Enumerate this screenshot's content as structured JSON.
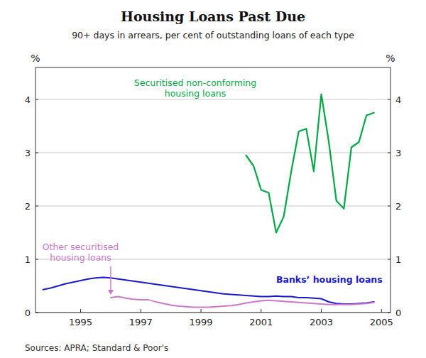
{
  "chart_data": {
    "type": "line",
    "title": "Housing Loans Past Due",
    "subtitle": "90+ days in arrears, per cent of outstanding loans of each type",
    "ylabel": "%",
    "y2label": "%",
    "source": "Sources: APRA; Standard & Poor's",
    "xlim": [
      1993.5,
      2005.3
    ],
    "ylim": [
      0,
      4.6
    ],
    "y2lim": [
      0,
      4.6
    ],
    "xticks": [
      1995,
      1997,
      1999,
      2001,
      2003,
      2005
    ],
    "yticks": [
      0,
      1,
      2,
      3,
      4
    ],
    "y2ticks": [
      0,
      1,
      2,
      3,
      4
    ],
    "grid": true,
    "series": [
      {
        "name": "Banks’ housing loans",
        "color": "#1a1acc",
        "x": [
          1993.75,
          1994.0,
          1994.25,
          1994.5,
          1994.75,
          1995.0,
          1995.25,
          1995.5,
          1995.75,
          1996.0,
          1996.25,
          1996.5,
          1996.75,
          1997.0,
          1997.25,
          1997.5,
          1997.75,
          1998.0,
          1998.25,
          1998.5,
          1998.75,
          1999.0,
          1999.25,
          1999.5,
          1999.75,
          2000.0,
          2000.25,
          2000.5,
          2000.75,
          2001.0,
          2001.25,
          2001.5,
          2001.75,
          2002.0,
          2002.25,
          2002.5,
          2002.75,
          2003.0,
          2003.25,
          2003.5,
          2003.75,
          2004.0,
          2004.25,
          2004.5,
          2004.75
        ],
        "values": [
          0.43,
          0.46,
          0.5,
          0.54,
          0.57,
          0.6,
          0.63,
          0.65,
          0.66,
          0.65,
          0.63,
          0.61,
          0.59,
          0.57,
          0.55,
          0.53,
          0.51,
          0.49,
          0.47,
          0.45,
          0.43,
          0.41,
          0.39,
          0.37,
          0.35,
          0.34,
          0.33,
          0.32,
          0.31,
          0.3,
          0.3,
          0.31,
          0.3,
          0.3,
          0.28,
          0.28,
          0.27,
          0.26,
          0.2,
          0.17,
          0.16,
          0.16,
          0.17,
          0.18,
          0.2
        ]
      },
      {
        "name": "Other securitised\nhousing loans",
        "color": "#cc77cc",
        "x": [
          1996.0,
          1996.25,
          1996.5,
          1996.75,
          1997.0,
          1997.25,
          1997.5,
          1997.75,
          1998.0,
          1998.25,
          1998.5,
          1998.75,
          1999.0,
          1999.25,
          1999.5,
          1999.75,
          2000.0,
          2000.25,
          2000.5,
          2000.75,
          2001.0,
          2001.25,
          2001.5,
          2001.75,
          2002.0,
          2002.25,
          2002.5,
          2002.75,
          2003.0,
          2003.25,
          2003.5,
          2003.75,
          2004.0,
          2004.25,
          2004.5,
          2004.75
        ],
        "values": [
          0.28,
          0.3,
          0.27,
          0.25,
          0.24,
          0.24,
          0.2,
          0.17,
          0.14,
          0.12,
          0.11,
          0.1,
          0.1,
          0.1,
          0.11,
          0.12,
          0.13,
          0.15,
          0.18,
          0.2,
          0.22,
          0.23,
          0.22,
          0.21,
          0.2,
          0.19,
          0.18,
          0.17,
          0.16,
          0.15,
          0.15,
          0.15,
          0.15,
          0.16,
          0.17,
          0.19
        ]
      },
      {
        "name": "Securitised non-conforming\nhousing loans",
        "color": "#00aa44",
        "x": [
          2000.5,
          2000.75,
          2001.0,
          2001.25,
          2001.5,
          2001.75,
          2002.0,
          2002.25,
          2002.5,
          2002.75,
          2003.0,
          2003.25,
          2003.5,
          2003.75,
          2004.0,
          2004.25,
          2004.5,
          2004.75
        ],
        "values": [
          2.95,
          2.75,
          2.3,
          2.25,
          1.5,
          1.8,
          2.65,
          3.4,
          3.45,
          2.65,
          4.1,
          3.2,
          2.1,
          1.95,
          3.1,
          3.2,
          3.7,
          3.75
        ]
      }
    ]
  }
}
